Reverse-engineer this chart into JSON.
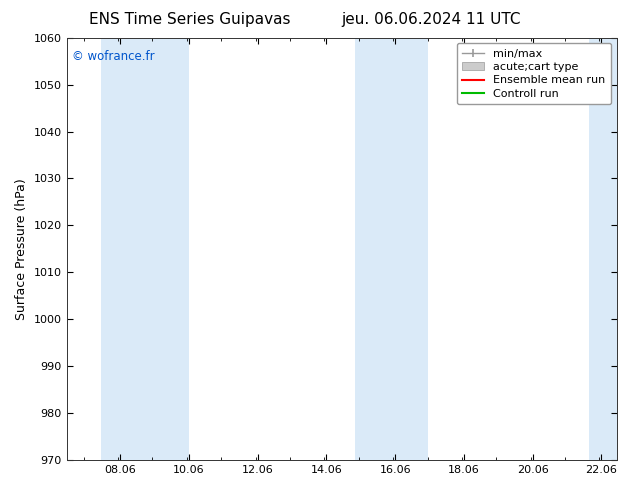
{
  "title_left": "ENS Time Series Guipavas",
  "title_right": "jeu. 06.06.2024 11 UTC",
  "ylabel": "Surface Pressure (hPa)",
  "ylim": [
    970,
    1060
  ],
  "yticks": [
    970,
    980,
    990,
    1000,
    1010,
    1020,
    1030,
    1040,
    1050,
    1060
  ],
  "xlim": [
    6.5,
    22.5
  ],
  "xticks": [
    8.06,
    10.06,
    12.06,
    14.06,
    16.06,
    18.06,
    20.06,
    22.06
  ],
  "xlabel_labels": [
    "08.06",
    "10.06",
    "12.06",
    "14.06",
    "16.06",
    "18.06",
    "20.06",
    "22.06"
  ],
  "watermark": "© wofrance.fr",
  "watermark_color": "#0055cc",
  "bg_color": "#ffffff",
  "plot_bg_color": "#ffffff",
  "shaded_bands": [
    {
      "xmin": 7.5,
      "xmax": 10.06,
      "color": "#daeaf8"
    },
    {
      "xmin": 14.9,
      "xmax": 17.0,
      "color": "#daeaf8"
    },
    {
      "xmin": 21.7,
      "xmax": 22.5,
      "color": "#daeaf8"
    }
  ],
  "legend_entries": [
    {
      "label": "min/max",
      "color": "#999999",
      "lw": 1,
      "type": "minmax"
    },
    {
      "label": "acute;cart type",
      "color": "#cccccc",
      "lw": 8,
      "type": "band"
    },
    {
      "label": "Ensemble mean run",
      "color": "#ff0000",
      "lw": 1.5,
      "type": "line"
    },
    {
      "label": "Controll run",
      "color": "#00bb00",
      "lw": 1.5,
      "type": "line"
    }
  ],
  "title_fontsize": 11,
  "tick_fontsize": 8,
  "ylabel_fontsize": 9,
  "legend_fontsize": 8
}
